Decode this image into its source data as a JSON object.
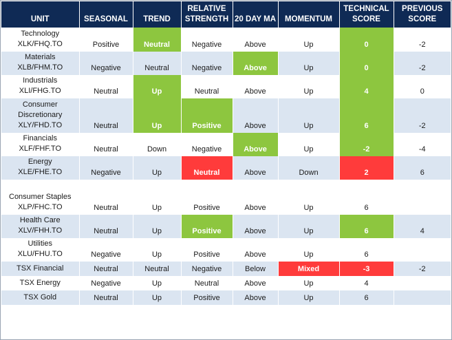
{
  "columns": [
    {
      "label": "UNIT",
      "width": 113
    },
    {
      "label": "SEASONAL",
      "width": 78
    },
    {
      "label": "TREND",
      "width": 70
    },
    {
      "label": "RELATIVE STRENGTH",
      "width": 75
    },
    {
      "label": "20 DAY MA",
      "width": 66
    },
    {
      "label": "MOMENTUM",
      "width": 89
    },
    {
      "label": "TECHNICAL SCORE",
      "width": 79
    },
    {
      "label": "PREVIOUS SCORE",
      "width": 83
    }
  ],
  "colors": {
    "header_bg": "#0f2a55",
    "alt_row_bg": "#dbe5f1",
    "positive_fill": "#8dc63f",
    "negative_fill": "#ff3b3b"
  },
  "rows": [
    {
      "unit": [
        "Technology",
        "XLK/FHQ.TO"
      ],
      "height": 35,
      "bg": "white",
      "cells": [
        {
          "v": "Positive"
        },
        {
          "v": "Neutral",
          "f": "g"
        },
        {
          "v": "Negative"
        },
        {
          "v": "Above"
        },
        {
          "v": "Up"
        },
        {
          "v": "0",
          "f": "g"
        },
        {
          "v": "-2"
        }
      ]
    },
    {
      "unit": [
        "Materials",
        "XLB/FHM.TO"
      ],
      "height": 34,
      "bg": "alt",
      "cells": [
        {
          "v": "Negative"
        },
        {
          "v": "Neutral"
        },
        {
          "v": "Negative"
        },
        {
          "v": "Above",
          "f": "g"
        },
        {
          "v": "Up"
        },
        {
          "v": "0",
          "f": "g"
        },
        {
          "v": "-2"
        }
      ]
    },
    {
      "unit": [
        "Industrials",
        "XLI/FHG.TO"
      ],
      "height": 34,
      "bg": "white",
      "cells": [
        {
          "v": "Neutral"
        },
        {
          "v": "Up",
          "f": "g"
        },
        {
          "v": "Neutral"
        },
        {
          "v": "Above"
        },
        {
          "v": "Up"
        },
        {
          "v": "4",
          "f": "g"
        },
        {
          "v": "0"
        }
      ]
    },
    {
      "unit": [
        "Consumer",
        "Discretionary",
        "XLY/FHD.TO"
      ],
      "height": 50,
      "bg": "alt",
      "cells": [
        {
          "v": "Neutral"
        },
        {
          "v": "Up",
          "f": "g"
        },
        {
          "v": "Positive",
          "f": "g"
        },
        {
          "v": "Above"
        },
        {
          "v": "Up"
        },
        {
          "v": "6",
          "f": "g"
        },
        {
          "v": "-2"
        }
      ]
    },
    {
      "unit": [
        "Financials",
        "XLF/FHF.TO"
      ],
      "height": 34,
      "bg": "white",
      "cells": [
        {
          "v": "Neutral"
        },
        {
          "v": "Down"
        },
        {
          "v": "Negative"
        },
        {
          "v": "Above",
          "f": "g"
        },
        {
          "v": "Up"
        },
        {
          "v": "-2",
          "f": "g"
        },
        {
          "v": "-4"
        }
      ]
    },
    {
      "unit": [
        "Energy",
        "XLE/FHE.TO"
      ],
      "height": 34,
      "bg": "alt",
      "cells": [
        {
          "v": "Negative"
        },
        {
          "v": "Up"
        },
        {
          "v": "Neutral",
          "f": "r"
        },
        {
          "v": "Above"
        },
        {
          "v": "Down"
        },
        {
          "v": "2",
          "f": "r"
        },
        {
          "v": "6"
        }
      ]
    },
    {
      "unit": [
        "Consumer Staples",
        "XLP/FHC.TO"
      ],
      "height": 51,
      "bg": "white",
      "cells": [
        {
          "v": "Neutral"
        },
        {
          "v": "Up"
        },
        {
          "v": "Positive"
        },
        {
          "v": "Above"
        },
        {
          "v": "Up"
        },
        {
          "v": "6"
        },
        {
          "v": ""
        }
      ]
    },
    {
      "unit": [
        "Health Care",
        "XLV/FHH.TO"
      ],
      "height": 34,
      "bg": "alt",
      "cells": [
        {
          "v": "Neutral"
        },
        {
          "v": "Up"
        },
        {
          "v": "Positive",
          "f": "g"
        },
        {
          "v": "Above"
        },
        {
          "v": "Up"
        },
        {
          "v": "6",
          "f": "g"
        },
        {
          "v": "4"
        }
      ]
    },
    {
      "unit": [
        "Utilities",
        "XLU/FHU.TO"
      ],
      "height": 34,
      "bg": "white",
      "cells": [
        {
          "v": "Negative"
        },
        {
          "v": "Up"
        },
        {
          "v": "Positive"
        },
        {
          "v": "Above"
        },
        {
          "v": "Up"
        },
        {
          "v": "6"
        },
        {
          "v": ""
        }
      ]
    },
    {
      "unit": [
        "TSX Financial"
      ],
      "height": 21,
      "bg": "alt",
      "cells": [
        {
          "v": "Neutral"
        },
        {
          "v": "Neutral"
        },
        {
          "v": "Negative"
        },
        {
          "v": "Below"
        },
        {
          "v": "Mixed",
          "f": "r"
        },
        {
          "v": "-3",
          "f": "r"
        },
        {
          "v": "-2"
        }
      ]
    },
    {
      "unit": [
        "TSX Energy"
      ],
      "height": 21,
      "bg": "white",
      "cells": [
        {
          "v": "Negative"
        },
        {
          "v": "Up"
        },
        {
          "v": "Neutral"
        },
        {
          "v": "Above"
        },
        {
          "v": "Up"
        },
        {
          "v": "4"
        },
        {
          "v": ""
        }
      ]
    },
    {
      "unit": [
        "TSX Gold"
      ],
      "height": 21,
      "bg": "alt",
      "cells": [
        {
          "v": "Neutral"
        },
        {
          "v": "Up"
        },
        {
          "v": "Positive"
        },
        {
          "v": "Above"
        },
        {
          "v": "Up"
        },
        {
          "v": "6"
        },
        {
          "v": ""
        }
      ]
    }
  ]
}
